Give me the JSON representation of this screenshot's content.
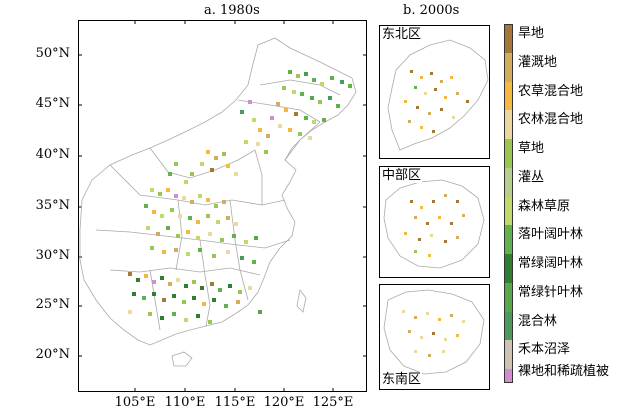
{
  "panels": {
    "main": {
      "title": "a. 1980s"
    },
    "inset": {
      "title": "b. 2000s"
    }
  },
  "lat_ticks": [
    "50°N",
    "45°N",
    "40°N",
    "35°N",
    "30°N",
    "25°N",
    "20°N"
  ],
  "lon_ticks": [
    "105°E",
    "110°E",
    "115°E",
    "120°E",
    "125°E"
  ],
  "regions": {
    "northeast": "东北区",
    "central": "中部区",
    "southeast": "东南区"
  },
  "legend": [
    {
      "label": "旱地",
      "color": "#a57838"
    },
    {
      "label": "灌溉地",
      "color": "#d2ad5e"
    },
    {
      "label": "农草混合地",
      "color": "#f5b840"
    },
    {
      "label": "农林混合地",
      "color": "#e9d8a0"
    },
    {
      "label": "草地",
      "color": "#9bc651"
    },
    {
      "label": "灌丛",
      "color": "#b6cf8e"
    },
    {
      "label": "森林草原",
      "color": "#bfd96a"
    },
    {
      "label": "落叶阔叶林",
      "color": "#63b04e"
    },
    {
      "label": "常绿阔叶林",
      "color": "#2f7f33"
    },
    {
      "label": "常绿针叶林",
      "color": "#5aa64a"
    },
    {
      "label": "混合林",
      "color": "#4c9a5e"
    },
    {
      "label": "禾本沼泽",
      "color": "#cdc3b2"
    },
    {
      "label": "裸地和稀疏植被",
      "color": "#cf8fcf"
    }
  ]
}
